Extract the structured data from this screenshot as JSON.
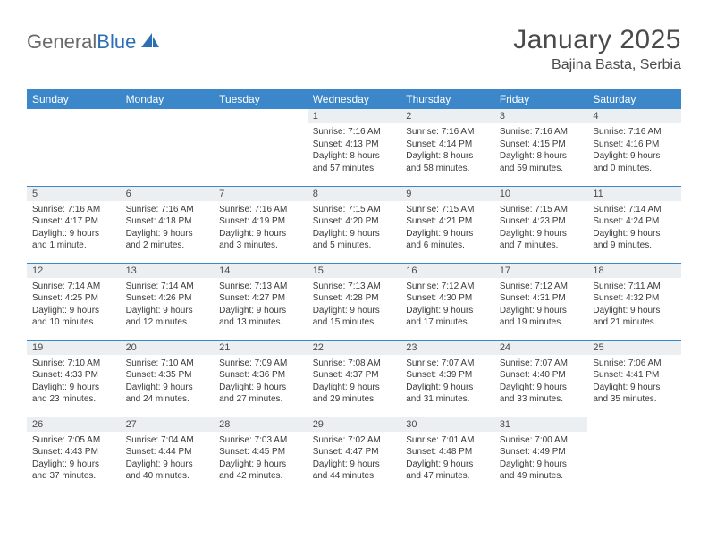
{
  "brand": {
    "part1": "General",
    "part2": "Blue"
  },
  "title": "January 2025",
  "location": "Bajina Basta, Serbia",
  "colors": {
    "header_bg": "#3c87c9",
    "header_text": "#ffffff",
    "daynum_bg": "#eceff2",
    "row_border": "#3c87c9",
    "text": "#4a4a4a",
    "logo_gray": "#6a6a6a",
    "logo_blue": "#2d6fb5"
  },
  "weekdays": [
    "Sunday",
    "Monday",
    "Tuesday",
    "Wednesday",
    "Thursday",
    "Friday",
    "Saturday"
  ],
  "weeks": [
    [
      null,
      null,
      null,
      {
        "n": "1",
        "sr": "Sunrise: 7:16 AM",
        "ss": "Sunset: 4:13 PM",
        "d1": "Daylight: 8 hours",
        "d2": "and 57 minutes."
      },
      {
        "n": "2",
        "sr": "Sunrise: 7:16 AM",
        "ss": "Sunset: 4:14 PM",
        "d1": "Daylight: 8 hours",
        "d2": "and 58 minutes."
      },
      {
        "n": "3",
        "sr": "Sunrise: 7:16 AM",
        "ss": "Sunset: 4:15 PM",
        "d1": "Daylight: 8 hours",
        "d2": "and 59 minutes."
      },
      {
        "n": "4",
        "sr": "Sunrise: 7:16 AM",
        "ss": "Sunset: 4:16 PM",
        "d1": "Daylight: 9 hours",
        "d2": "and 0 minutes."
      }
    ],
    [
      {
        "n": "5",
        "sr": "Sunrise: 7:16 AM",
        "ss": "Sunset: 4:17 PM",
        "d1": "Daylight: 9 hours",
        "d2": "and 1 minute."
      },
      {
        "n": "6",
        "sr": "Sunrise: 7:16 AM",
        "ss": "Sunset: 4:18 PM",
        "d1": "Daylight: 9 hours",
        "d2": "and 2 minutes."
      },
      {
        "n": "7",
        "sr": "Sunrise: 7:16 AM",
        "ss": "Sunset: 4:19 PM",
        "d1": "Daylight: 9 hours",
        "d2": "and 3 minutes."
      },
      {
        "n": "8",
        "sr": "Sunrise: 7:15 AM",
        "ss": "Sunset: 4:20 PM",
        "d1": "Daylight: 9 hours",
        "d2": "and 5 minutes."
      },
      {
        "n": "9",
        "sr": "Sunrise: 7:15 AM",
        "ss": "Sunset: 4:21 PM",
        "d1": "Daylight: 9 hours",
        "d2": "and 6 minutes."
      },
      {
        "n": "10",
        "sr": "Sunrise: 7:15 AM",
        "ss": "Sunset: 4:23 PM",
        "d1": "Daylight: 9 hours",
        "d2": "and 7 minutes."
      },
      {
        "n": "11",
        "sr": "Sunrise: 7:14 AM",
        "ss": "Sunset: 4:24 PM",
        "d1": "Daylight: 9 hours",
        "d2": "and 9 minutes."
      }
    ],
    [
      {
        "n": "12",
        "sr": "Sunrise: 7:14 AM",
        "ss": "Sunset: 4:25 PM",
        "d1": "Daylight: 9 hours",
        "d2": "and 10 minutes."
      },
      {
        "n": "13",
        "sr": "Sunrise: 7:14 AM",
        "ss": "Sunset: 4:26 PM",
        "d1": "Daylight: 9 hours",
        "d2": "and 12 minutes."
      },
      {
        "n": "14",
        "sr": "Sunrise: 7:13 AM",
        "ss": "Sunset: 4:27 PM",
        "d1": "Daylight: 9 hours",
        "d2": "and 13 minutes."
      },
      {
        "n": "15",
        "sr": "Sunrise: 7:13 AM",
        "ss": "Sunset: 4:28 PM",
        "d1": "Daylight: 9 hours",
        "d2": "and 15 minutes."
      },
      {
        "n": "16",
        "sr": "Sunrise: 7:12 AM",
        "ss": "Sunset: 4:30 PM",
        "d1": "Daylight: 9 hours",
        "d2": "and 17 minutes."
      },
      {
        "n": "17",
        "sr": "Sunrise: 7:12 AM",
        "ss": "Sunset: 4:31 PM",
        "d1": "Daylight: 9 hours",
        "d2": "and 19 minutes."
      },
      {
        "n": "18",
        "sr": "Sunrise: 7:11 AM",
        "ss": "Sunset: 4:32 PM",
        "d1": "Daylight: 9 hours",
        "d2": "and 21 minutes."
      }
    ],
    [
      {
        "n": "19",
        "sr": "Sunrise: 7:10 AM",
        "ss": "Sunset: 4:33 PM",
        "d1": "Daylight: 9 hours",
        "d2": "and 23 minutes."
      },
      {
        "n": "20",
        "sr": "Sunrise: 7:10 AM",
        "ss": "Sunset: 4:35 PM",
        "d1": "Daylight: 9 hours",
        "d2": "and 24 minutes."
      },
      {
        "n": "21",
        "sr": "Sunrise: 7:09 AM",
        "ss": "Sunset: 4:36 PM",
        "d1": "Daylight: 9 hours",
        "d2": "and 27 minutes."
      },
      {
        "n": "22",
        "sr": "Sunrise: 7:08 AM",
        "ss": "Sunset: 4:37 PM",
        "d1": "Daylight: 9 hours",
        "d2": "and 29 minutes."
      },
      {
        "n": "23",
        "sr": "Sunrise: 7:07 AM",
        "ss": "Sunset: 4:39 PM",
        "d1": "Daylight: 9 hours",
        "d2": "and 31 minutes."
      },
      {
        "n": "24",
        "sr": "Sunrise: 7:07 AM",
        "ss": "Sunset: 4:40 PM",
        "d1": "Daylight: 9 hours",
        "d2": "and 33 minutes."
      },
      {
        "n": "25",
        "sr": "Sunrise: 7:06 AM",
        "ss": "Sunset: 4:41 PM",
        "d1": "Daylight: 9 hours",
        "d2": "and 35 minutes."
      }
    ],
    [
      {
        "n": "26",
        "sr": "Sunrise: 7:05 AM",
        "ss": "Sunset: 4:43 PM",
        "d1": "Daylight: 9 hours",
        "d2": "and 37 minutes."
      },
      {
        "n": "27",
        "sr": "Sunrise: 7:04 AM",
        "ss": "Sunset: 4:44 PM",
        "d1": "Daylight: 9 hours",
        "d2": "and 40 minutes."
      },
      {
        "n": "28",
        "sr": "Sunrise: 7:03 AM",
        "ss": "Sunset: 4:45 PM",
        "d1": "Daylight: 9 hours",
        "d2": "and 42 minutes."
      },
      {
        "n": "29",
        "sr": "Sunrise: 7:02 AM",
        "ss": "Sunset: 4:47 PM",
        "d1": "Daylight: 9 hours",
        "d2": "and 44 minutes."
      },
      {
        "n": "30",
        "sr": "Sunrise: 7:01 AM",
        "ss": "Sunset: 4:48 PM",
        "d1": "Daylight: 9 hours",
        "d2": "and 47 minutes."
      },
      {
        "n": "31",
        "sr": "Sunrise: 7:00 AM",
        "ss": "Sunset: 4:49 PM",
        "d1": "Daylight: 9 hours",
        "d2": "and 49 minutes."
      },
      null
    ]
  ]
}
